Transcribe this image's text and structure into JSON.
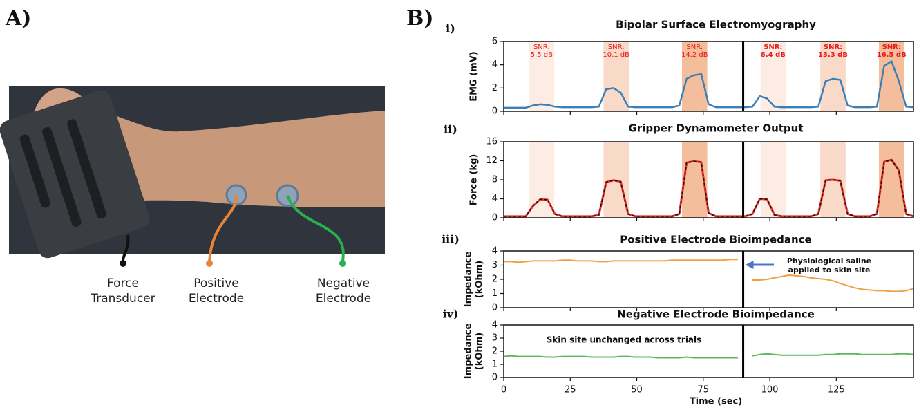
{
  "panel_a": {
    "label": "A)",
    "callouts": [
      {
        "lines": [
          "Force",
          "Transducer"
        ],
        "color": "#1a1a1a"
      },
      {
        "lines": [
          "Positive",
          "Electrode"
        ],
        "color": "#e8843a"
      },
      {
        "lines": [
          "Negative",
          "Electrode"
        ],
        "color": "#27b050"
      }
    ]
  },
  "panel_b_label": "B)",
  "chart_data": [
    {
      "type": "line",
      "panel_label": "i)",
      "title": "Bipolar Surface Electromyography",
      "ylabel": [
        "EMG (mV)"
      ],
      "xlim": [
        0,
        154
      ],
      "xticks": [
        0,
        25,
        50,
        75,
        100,
        125
      ],
      "xtick_labels": false,
      "ylim": [
        0,
        6
      ],
      "yticks": [
        0,
        2,
        4,
        6
      ],
      "divider_x": 90,
      "shaded_regions": [
        {
          "x": [
            9.5,
            19
          ],
          "color": "#fcece4",
          "label": [
            "SNR:",
            "5.5 dB"
          ],
          "label_bold": false
        },
        {
          "x": [
            37.5,
            47
          ],
          "color": "#f9d9c8",
          "label": [
            "SNR:",
            "10.1 dB"
          ],
          "label_bold": false
        },
        {
          "x": [
            67,
            76.5
          ],
          "color": "#f4bd9c",
          "label": [
            "SNR:",
            "14.2 dB"
          ],
          "label_bold": false
        },
        {
          "x": [
            96.5,
            106
          ],
          "color": "#fcece4",
          "label": [
            "SNR:",
            "8.4 dB"
          ],
          "label_bold": true
        },
        {
          "x": [
            119,
            128.5
          ],
          "color": "#f9d9c8",
          "label": [
            "SNR:",
            "13.3 dB"
          ],
          "label_bold": true
        },
        {
          "x": [
            141,
            150.5
          ],
          "color": "#f4bd9c",
          "label": [
            "SNR:",
            "16.5 dB"
          ],
          "label_bold": true
        }
      ],
      "label_color": "#e8191b",
      "x": [
        0,
        2.75,
        5.5,
        8.25,
        11,
        13.75,
        16.5,
        19.25,
        22,
        24.75,
        27.5,
        30.25,
        33,
        35.75,
        38.5,
        41.25,
        44,
        46.75,
        49.5,
        52.25,
        55,
        57.75,
        60.5,
        63.25,
        66,
        68.75,
        71.5,
        74.25,
        77,
        79.75,
        82.5,
        85.25,
        88,
        90.75,
        93.5,
        96.25,
        99,
        101.75,
        104.5,
        107.25,
        110,
        112.75,
        115.5,
        118.25,
        121,
        123.75,
        126.5,
        129.25,
        132,
        134.75,
        137.5,
        140.25,
        143,
        145.75,
        148.5,
        151.25,
        154
      ],
      "series": [
        {
          "color": "#3b7fb6",
          "width": 2.5,
          "dashed": false,
          "values": [
            0.3,
            0.3,
            0.3,
            0.3,
            0.5,
            0.6,
            0.55,
            0.4,
            0.35,
            0.35,
            0.35,
            0.35,
            0.35,
            0.4,
            1.9,
            2.0,
            1.6,
            0.4,
            0.35,
            0.35,
            0.35,
            0.35,
            0.35,
            0.35,
            0.5,
            2.8,
            3.1,
            3.2,
            0.6,
            0.35,
            0.35,
            0.35,
            0.35,
            0.35,
            0.4,
            1.3,
            1.1,
            0.4,
            0.35,
            0.35,
            0.35,
            0.35,
            0.35,
            0.4,
            2.6,
            2.8,
            2.7,
            0.5,
            0.35,
            0.35,
            0.35,
            0.4,
            3.9,
            4.3,
            2.6,
            0.4,
            0.35
          ]
        }
      ]
    },
    {
      "type": "line",
      "panel_label": "ii)",
      "title": "Gripper Dynamometer Output",
      "ylabel": [
        "Force (kg)"
      ],
      "xlim": [
        0,
        154
      ],
      "xticks": [
        0,
        25,
        50,
        75,
        100,
        125
      ],
      "xtick_labels": false,
      "ylim": [
        0,
        16
      ],
      "yticks": [
        0,
        4,
        8,
        12,
        16
      ],
      "divider_x": 90,
      "shaded_regions": [
        {
          "x": [
            9.5,
            19
          ],
          "color": "#fcece4"
        },
        {
          "x": [
            37.5,
            47
          ],
          "color": "#f9d9c8"
        },
        {
          "x": [
            67,
            76.5
          ],
          "color": "#f4bd9c"
        },
        {
          "x": [
            96.5,
            106
          ],
          "color": "#fcece4"
        },
        {
          "x": [
            119,
            128.5
          ],
          "color": "#f9d9c8"
        },
        {
          "x": [
            141,
            150.5
          ],
          "color": "#f4bd9c"
        }
      ],
      "x": [
        0,
        2.75,
        5.5,
        8.25,
        11,
        13.75,
        16.5,
        19.25,
        22,
        24.75,
        27.5,
        30.25,
        33,
        35.75,
        38.5,
        41.25,
        44,
        46.75,
        49.5,
        52.25,
        55,
        57.75,
        60.5,
        63.25,
        66,
        68.75,
        71.5,
        74.25,
        77,
        79.75,
        82.5,
        85.25,
        88,
        90.75,
        93.5,
        96.25,
        99,
        101.75,
        104.5,
        107.25,
        110,
        112.75,
        115.5,
        118.25,
        121,
        123.75,
        126.5,
        129.25,
        132,
        134.75,
        137.5,
        140.25,
        143,
        145.75,
        148.5,
        151.25,
        154
      ],
      "series": [
        {
          "color": "#e8322b",
          "width": 3,
          "dashed": false,
          "values": [
            0.3,
            0.3,
            0.3,
            0.3,
            2.5,
            3.9,
            3.8,
            0.8,
            0.3,
            0.3,
            0.3,
            0.3,
            0.3,
            0.6,
            7.5,
            7.9,
            7.6,
            0.8,
            0.3,
            0.3,
            0.3,
            0.3,
            0.3,
            0.3,
            0.8,
            11.6,
            11.9,
            11.7,
            1,
            0.3,
            0.3,
            0.3,
            0.3,
            0.3,
            0.8,
            4,
            3.9,
            0.6,
            0.3,
            0.3,
            0.3,
            0.3,
            0.3,
            0.8,
            7.9,
            8,
            7.8,
            0.8,
            0.3,
            0.3,
            0.3,
            0.8,
            11.8,
            12.2,
            10,
            0.8,
            0.3
          ]
        },
        {
          "color": "#111111",
          "width": 1.5,
          "dashed": true,
          "values": [
            0.3,
            0.3,
            0.3,
            0.3,
            2.5,
            3.9,
            3.8,
            0.8,
            0.3,
            0.3,
            0.3,
            0.3,
            0.3,
            0.6,
            7.5,
            7.9,
            7.6,
            0.8,
            0.3,
            0.3,
            0.3,
            0.3,
            0.3,
            0.3,
            0.8,
            11.6,
            11.9,
            11.7,
            1,
            0.3,
            0.3,
            0.3,
            0.3,
            0.3,
            0.8,
            4,
            3.9,
            0.6,
            0.3,
            0.3,
            0.3,
            0.3,
            0.3,
            0.8,
            7.9,
            8,
            7.8,
            0.8,
            0.3,
            0.3,
            0.3,
            0.8,
            11.8,
            12.2,
            10,
            0.8,
            0.3
          ]
        }
      ]
    },
    {
      "type": "line",
      "panel_label": "iii)",
      "title": "Positive Electrode Bioimpedance",
      "ylabel": [
        "Impedance",
        "(kOhm)"
      ],
      "xlim": [
        0,
        154
      ],
      "xticks": [
        0,
        25,
        50,
        75,
        100,
        125
      ],
      "xtick_labels": false,
      "ylim": [
        0,
        4
      ],
      "yticks": [
        0,
        1,
        2,
        3,
        4
      ],
      "divider_x": 90,
      "annotation": [
        "Physiological saline",
        "applied to skin site"
      ],
      "annotation_arrow": true,
      "x": [
        0,
        2.75,
        5.5,
        8.25,
        11,
        13.75,
        16.5,
        19.25,
        22,
        24.75,
        27.5,
        30.25,
        33,
        35.75,
        38.5,
        41.25,
        44,
        46.75,
        49.5,
        52.25,
        55,
        57.75,
        60.5,
        63.25,
        66,
        68.75,
        71.5,
        74.25,
        77,
        79.75,
        82.5,
        85.25,
        88,
        90.75,
        93.5,
        96.25,
        99,
        101.75,
        104.5,
        107.25,
        110,
        112.75,
        115.5,
        118.25,
        121,
        123.75,
        126.5,
        129.25,
        132,
        134.75,
        137.5,
        140.25,
        143,
        145.75,
        148.5,
        151.25,
        154
      ],
      "series": [
        {
          "color": "#f0a040",
          "width": 2,
          "dashed": false,
          "values": [
            3.25,
            3.25,
            3.2,
            3.25,
            3.3,
            3.3,
            3.3,
            3.3,
            3.35,
            3.35,
            3.3,
            3.3,
            3.3,
            3.25,
            3.25,
            3.3,
            3.3,
            3.3,
            3.3,
            3.3,
            3.3,
            3.3,
            3.3,
            3.35,
            3.35,
            3.35,
            3.35,
            3.35,
            3.35,
            3.35,
            3.35,
            3.4,
            3.4,
            null,
            1.95,
            1.95,
            2.0,
            2.1,
            2.2,
            2.3,
            2.25,
            2.2,
            2.1,
            2.05,
            2.0,
            1.9,
            1.7,
            1.55,
            1.4,
            1.3,
            1.25,
            1.2,
            1.2,
            1.15,
            1.15,
            1.2,
            1.35
          ]
        }
      ]
    },
    {
      "type": "line",
      "panel_label": "iv)",
      "title": "Negative Electrode Bioimpedance",
      "ylabel": [
        "Impedance",
        "(kOhm)"
      ],
      "xlabel": "Time (sec)",
      "xlim": [
        0,
        154
      ],
      "xticks": [
        0,
        25,
        50,
        75,
        100,
        125
      ],
      "xtick_labels": true,
      "ylim": [
        0,
        4
      ],
      "yticks": [
        0,
        1,
        2,
        3,
        4
      ],
      "divider_x": 90,
      "annotation": [
        "Skin site unchanged across trials"
      ],
      "annotation_arrow": false,
      "x": [
        0,
        2.75,
        5.5,
        8.25,
        11,
        13.75,
        16.5,
        19.25,
        22,
        24.75,
        27.5,
        30.25,
        33,
        35.75,
        38.5,
        41.25,
        44,
        46.75,
        49.5,
        52.25,
        55,
        57.75,
        60.5,
        63.25,
        66,
        68.75,
        71.5,
        74.25,
        77,
        79.75,
        82.5,
        85.25,
        88,
        90.75,
        93.5,
        96.25,
        99,
        101.75,
        104.5,
        107.25,
        110,
        112.75,
        115.5,
        118.25,
        121,
        123.75,
        126.5,
        129.25,
        132,
        134.75,
        137.5,
        140.25,
        143,
        145.75,
        148.5,
        151.25,
        154
      ],
      "series": [
        {
          "color": "#5cb85c",
          "width": 2,
          "dashed": false,
          "values": [
            1.6,
            1.65,
            1.6,
            1.6,
            1.6,
            1.6,
            1.55,
            1.55,
            1.6,
            1.6,
            1.6,
            1.6,
            1.55,
            1.55,
            1.55,
            1.55,
            1.6,
            1.6,
            1.55,
            1.55,
            1.55,
            1.5,
            1.5,
            1.5,
            1.5,
            1.55,
            1.5,
            1.5,
            1.5,
            1.5,
            1.5,
            1.5,
            1.5,
            null,
            1.65,
            1.75,
            1.8,
            1.75,
            1.7,
            1.7,
            1.7,
            1.7,
            1.7,
            1.7,
            1.75,
            1.75,
            1.8,
            1.8,
            1.8,
            1.75,
            1.75,
            1.75,
            1.75,
            1.75,
            1.8,
            1.8,
            1.75
          ]
        }
      ]
    }
  ]
}
